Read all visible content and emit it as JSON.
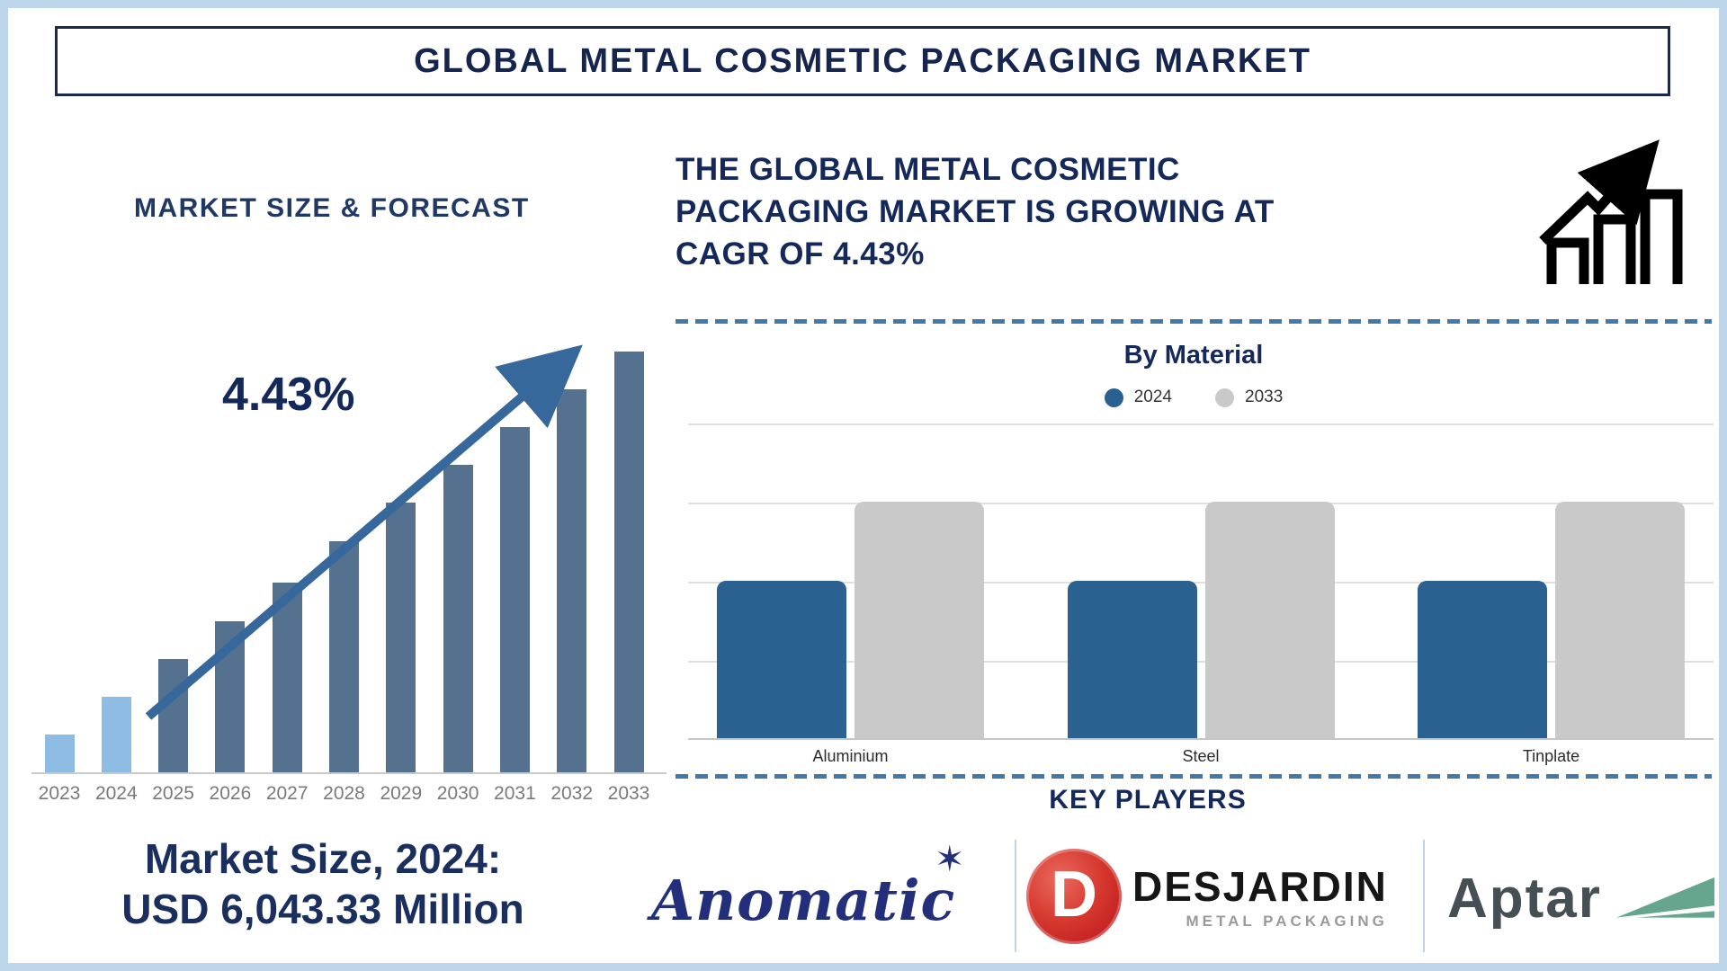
{
  "page": {
    "title": "GLOBAL METAL COSMETIC PACKAGING MARKET"
  },
  "market_size_section": {
    "heading": "MARKET SIZE & FORECAST",
    "cagr_annotation": "4.43%",
    "caption_line1": "Market Size, 2024:",
    "caption_line2": "USD 6,043.33 Million"
  },
  "growth_section": {
    "line1": "THE GLOBAL METAL COSMETIC",
    "line2": "PACKAGING MARKET IS GROWING AT",
    "line3": "CAGR OF 4.43%"
  },
  "by_material_section": {
    "title": "By Material",
    "legend": [
      {
        "label": "2024",
        "color": "#2b6191"
      },
      {
        "label": "2033",
        "color": "#c9c9c9"
      }
    ]
  },
  "key_players_section": {
    "heading": "KEY PLAYERS",
    "players": [
      {
        "name": "Anomatic"
      },
      {
        "name": "DESJARDIN",
        "subtitle": "METAL PACKAGING",
        "monogram": "D"
      },
      {
        "name": "Aptar"
      }
    ]
  },
  "colors": {
    "navy_text": "#14285a",
    "frame_border": "#bdd6ea",
    "forecast_bar_recent": "#8fbce3",
    "forecast_bar_projection": "#54718f",
    "arrow": "#36689b",
    "material_2024": "#2b6191",
    "material_2033": "#c9c9c9",
    "dashed_divider": "#4379a9",
    "desjardin_red": "#c41a1f",
    "aptar_green": "#66a68e"
  },
  "chart_data": [
    {
      "type": "bar",
      "title": "MARKET SIZE & FORECAST",
      "categories": [
        "2023",
        "2024",
        "2025",
        "2026",
        "2027",
        "2028",
        "2029",
        "2030",
        "2031",
        "2032",
        "2033"
      ],
      "values_relative_pct": [
        9,
        18,
        27,
        36,
        45,
        55,
        64,
        73,
        82,
        91,
        100
      ],
      "annotation": "4.43%",
      "xlabel": "",
      "ylabel": "",
      "value_axis_shown": false,
      "grid": false,
      "bar_colors": [
        "#8fbce3",
        "#8fbce3",
        "#54718f",
        "#54718f",
        "#54718f",
        "#54718f",
        "#54718f",
        "#54718f",
        "#54718f",
        "#54718f",
        "#54718f"
      ]
    },
    {
      "type": "bar",
      "subtype": "grouped",
      "title": "By Material",
      "categories": [
        "Aluminium",
        "Steel",
        "Tinplate"
      ],
      "series": [
        {
          "name": "2024",
          "color": "#2b6191",
          "values": [
            50,
            50,
            50
          ]
        },
        {
          "name": "2033",
          "color": "#c9c9c9",
          "values": [
            75,
            75,
            75
          ]
        }
      ],
      "ylim": [
        0,
        100
      ],
      "grid": true,
      "legend_position": "top"
    }
  ]
}
